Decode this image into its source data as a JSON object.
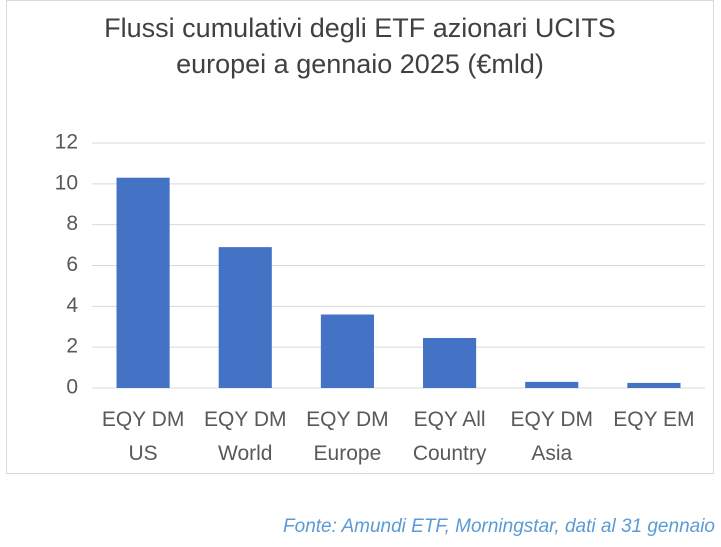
{
  "chart_data": {
    "type": "bar",
    "title": "Flussi cumulativi degli ETF azionari UCITS europei a gennaio 2025 (€mld)",
    "categories": [
      "EQY DM US",
      "EQY DM World",
      "EQY DM Europe",
      "EQY All Country",
      "EQY DM Asia",
      "EQY EM"
    ],
    "values": [
      10.3,
      6.9,
      3.6,
      2.45,
      0.3,
      0.25
    ],
    "color": "#4472c4",
    "ylim": [
      0,
      12
    ],
    "yticks": [
      0,
      2,
      4,
      6,
      8,
      10,
      12
    ],
    "grid": true,
    "source": "Fonte: Amundi ETF, Morningstar, dati al 31 gennaio"
  }
}
